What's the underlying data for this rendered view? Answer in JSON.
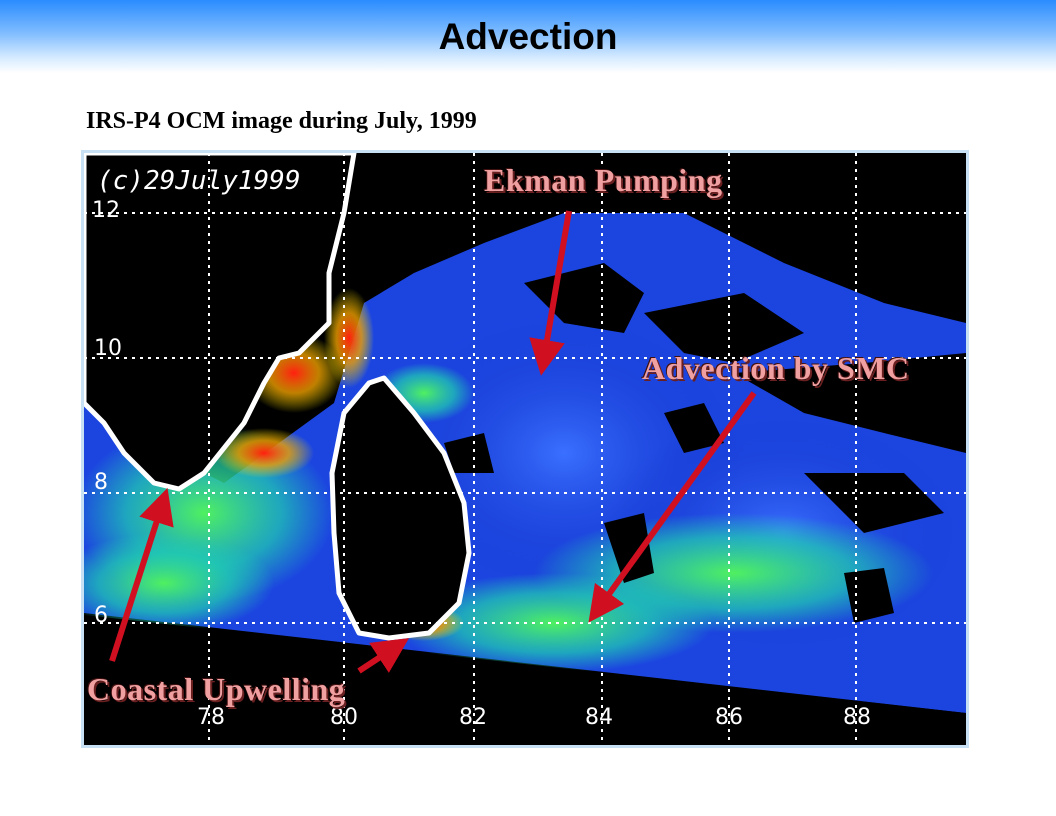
{
  "slide": {
    "title": "Advection",
    "caption": "IRS-P4 OCM image during July, 1999"
  },
  "image": {
    "stamp": "(c)29July1999",
    "lat_ticks": [
      "12",
      "10",
      "8",
      "6"
    ],
    "lon_ticks": [
      "78",
      "80",
      "82",
      "84",
      "86",
      "88"
    ],
    "annotations": {
      "ekman": "Ekman  Pumping",
      "advection": "Advection  by SMC",
      "coastal": "Coastal Upwelling"
    },
    "colors": {
      "land": "#000000",
      "coast": "#ffffff",
      "low_chlorophyll": "#1030d0",
      "mid_chlorophyll": "#20e0a0",
      "high_chlorophyll": "#e02010",
      "arrow": "#d01020"
    }
  }
}
